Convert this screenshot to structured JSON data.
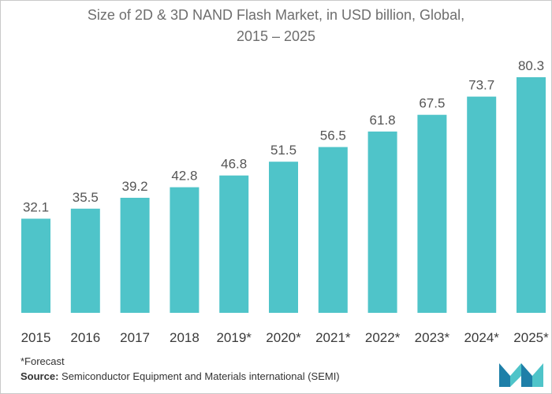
{
  "chart_data": {
    "type": "bar",
    "title_line1": "Size of 2D & 3D NAND Flash Market, in USD billion, Global,",
    "title_line2": "2015 – 2025",
    "categories": [
      "2015",
      "2016",
      "2017",
      "2018",
      "2019*",
      "2020*",
      "2021*",
      "2022*",
      "2023*",
      "2024*",
      "2025*"
    ],
    "values": [
      32.1,
      35.5,
      39.2,
      42.8,
      46.8,
      51.5,
      56.5,
      61.8,
      67.5,
      73.7,
      80.3
    ],
    "value_labels": [
      "32.1",
      "35.5",
      "39.2",
      "42.8",
      "46.8",
      "51.5",
      "56.5",
      "61.8",
      "67.5",
      "73.7",
      "80.3"
    ],
    "bar_color": "#4fc4c9",
    "xlabel": "",
    "ylabel": "",
    "ylim": [
      0,
      80.3
    ],
    "grid": false,
    "legend": "none"
  },
  "footer": {
    "forecast_note": "*Forecast",
    "source_label": "Source:",
    "source_text": " Semiconductor Equipment and Materials international (SEMI)"
  },
  "logo": {
    "icon": "mordor-logo-icon",
    "colors": [
      "#1e7fa8",
      "#4fc4c9"
    ]
  }
}
